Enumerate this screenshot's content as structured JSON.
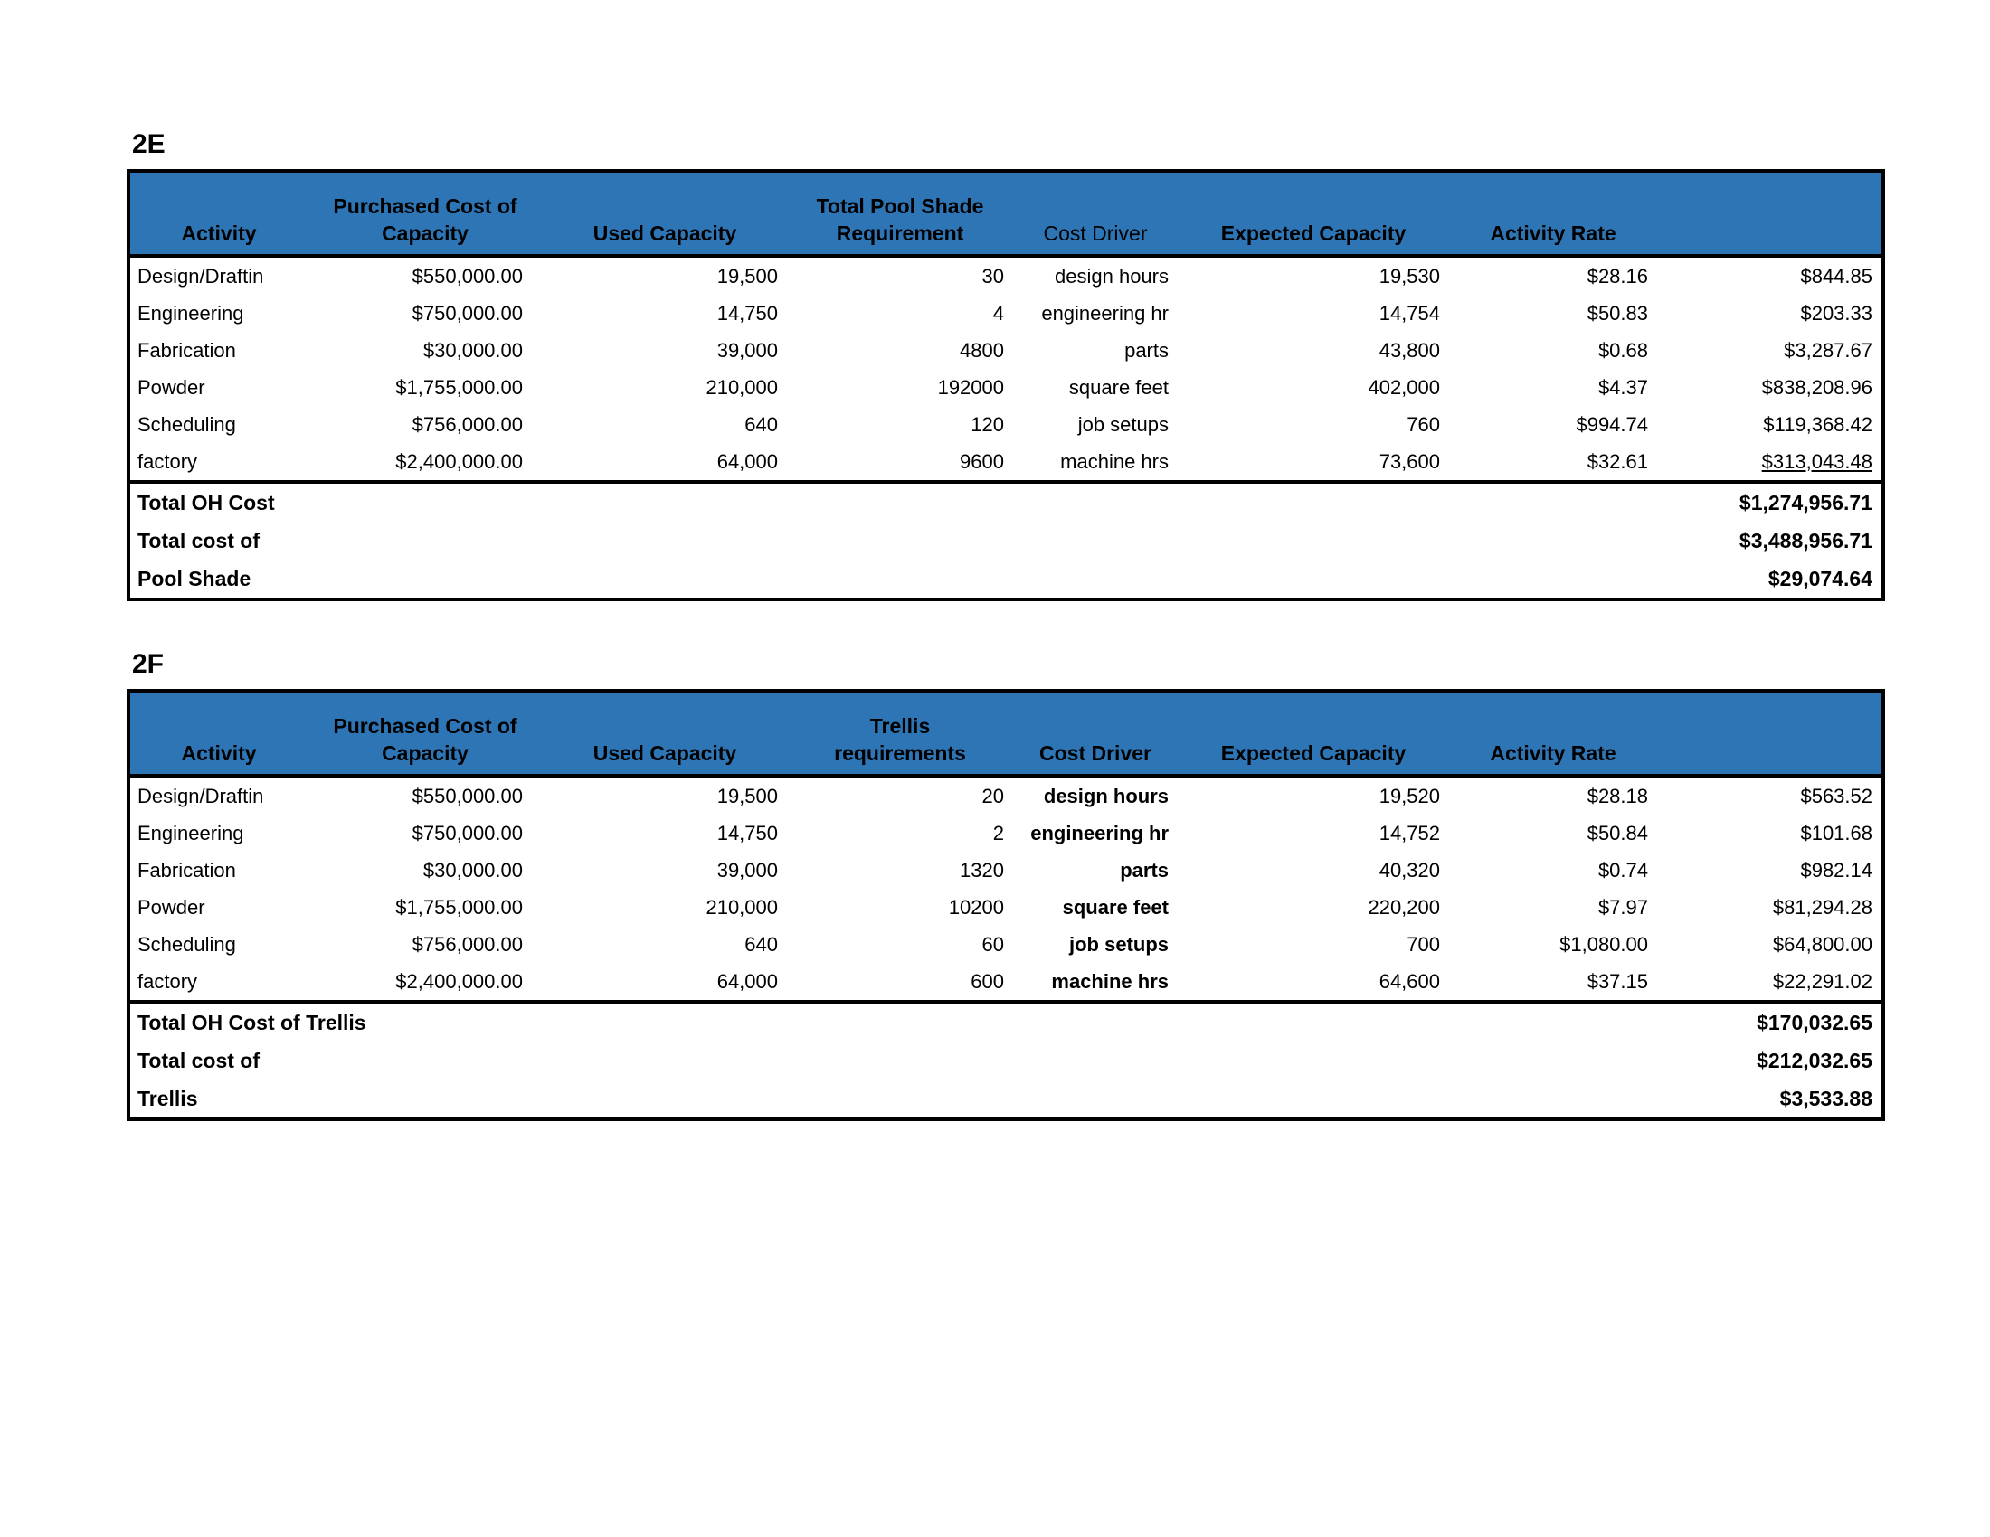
{
  "colors": {
    "header_bg": "#2E75B6",
    "header_text": "#000000",
    "border": "#000000",
    "page_bg": "#FFFFFF"
  },
  "tables": [
    {
      "label": "2E",
      "columns": [
        {
          "line2": "Activity"
        },
        {
          "line1": "Purchased Cost of",
          "line2": "Capacity"
        },
        {
          "line2": "Used Capacity"
        },
        {
          "line1": "Total Pool Shade",
          "line2": "Requirement"
        },
        {
          "line2": "Cost Driver"
        },
        {
          "line2": "Expected Capacity"
        },
        {
          "line2": "Activity Rate"
        },
        {
          "line2": ""
        }
      ],
      "rows": [
        {
          "activity": "Design/Draftin",
          "purchased": "$550,000.00",
          "used": "19,500",
          "requirement": "30",
          "driver": "design hours",
          "expected": "19,530",
          "rate": "$28.16",
          "amount": "$844.85"
        },
        {
          "activity": "Engineering",
          "purchased": "$750,000.00",
          "used": "14,750",
          "requirement": "4",
          "driver": "engineering hr",
          "expected": "14,754",
          "rate": "$50.83",
          "amount": "$203.33"
        },
        {
          "activity": "Fabrication",
          "purchased": "$30,000.00",
          "used": "39,000",
          "requirement": "4800",
          "driver": "parts",
          "expected": "43,800",
          "rate": "$0.68",
          "amount": "$3,287.67"
        },
        {
          "activity": "Powder",
          "purchased": "$1,755,000.00",
          "used": "210,000",
          "requirement": "192000",
          "driver": "square feet",
          "expected": "402,000",
          "rate": "$4.37",
          "amount": "$838,208.96"
        },
        {
          "activity": "Scheduling",
          "purchased": "$756,000.00",
          "used": "640",
          "requirement": "120",
          "driver": "job setups",
          "expected": "760",
          "rate": "$994.74",
          "amount": "$119,368.42"
        },
        {
          "activity": "factory",
          "purchased": "$2,400,000.00",
          "used": "64,000",
          "requirement": "9600",
          "driver": "machine hrs",
          "expected": "73,600",
          "rate": "$32.61",
          "amount": "$313,043.48"
        }
      ],
      "totals": [
        {
          "label": "Total OH Cost",
          "value": "$1,274,956.71"
        },
        {
          "label": "Total cost of",
          "value": "$3,488,956.71"
        },
        {
          "label": "Pool Shade",
          "value": "$29,074.64"
        }
      ]
    },
    {
      "label": "2F",
      "columns": [
        {
          "line2": "Activity"
        },
        {
          "line1": "Purchased Cost of",
          "line2": "Capacity"
        },
        {
          "line2": "Used Capacity"
        },
        {
          "line1": "Trellis",
          "line2": "requirements"
        },
        {
          "line2": "Cost Driver"
        },
        {
          "line2": "Expected Capacity"
        },
        {
          "line2": "Activity Rate"
        },
        {
          "line2": ""
        }
      ],
      "rows": [
        {
          "activity": "Design/Draftin",
          "purchased": "$550,000.00",
          "used": "19,500",
          "requirement": "20",
          "driver": "design hours",
          "expected": "19,520",
          "rate": "$28.18",
          "amount": "$563.52"
        },
        {
          "activity": "Engineering",
          "purchased": "$750,000.00",
          "used": "14,750",
          "requirement": "2",
          "driver": "engineering hr",
          "expected": "14,752",
          "rate": "$50.84",
          "amount": "$101.68"
        },
        {
          "activity": "Fabrication",
          "purchased": "$30,000.00",
          "used": "39,000",
          "requirement": "1320",
          "driver": "parts",
          "expected": "40,320",
          "rate": "$0.74",
          "amount": "$982.14"
        },
        {
          "activity": "Powder",
          "purchased": "$1,755,000.00",
          "used": "210,000",
          "requirement": "10200",
          "driver": "square feet",
          "expected": "220,200",
          "rate": "$7.97",
          "amount": "$81,294.28"
        },
        {
          "activity": "Scheduling",
          "purchased": "$756,000.00",
          "used": "640",
          "requirement": "60",
          "driver": "job setups",
          "expected": "700",
          "rate": "$1,080.00",
          "amount": "$64,800.00"
        },
        {
          "activity": "factory",
          "purchased": "$2,400,000.00",
          "used": "64,000",
          "requirement": "600",
          "driver": "machine hrs",
          "expected": "64,600",
          "rate": "$37.15",
          "amount": "$22,291.02"
        }
      ],
      "totals": [
        {
          "label": "Total OH Cost of Trellis",
          "value": "$170,032.65"
        },
        {
          "label": "Total cost of",
          "value": "$212,032.65"
        },
        {
          "label": "Trellis",
          "value": "$3,533.88"
        }
      ]
    }
  ]
}
